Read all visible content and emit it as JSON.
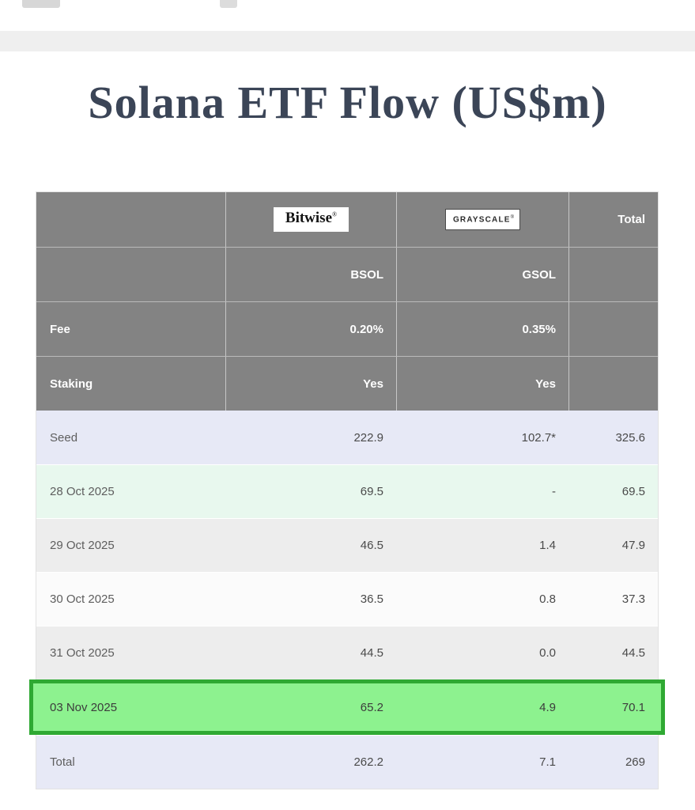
{
  "page": {
    "title": "Solana ETF Flow (US$m)"
  },
  "table": {
    "logos": {
      "bitwise": "Bitwise",
      "bitwise_mark": "®",
      "grayscale": "GRAYSCALE",
      "grayscale_mark": "®"
    },
    "header": {
      "total": "Total",
      "tickers": {
        "bsol": "BSOL",
        "gsol": "GSOL"
      },
      "fee": {
        "label": "Fee",
        "bsol": "0.20%",
        "gsol": "0.35%"
      },
      "staking": {
        "label": "Staking",
        "bsol": "Yes",
        "gsol": "Yes"
      }
    },
    "rows": [
      {
        "label": "Seed",
        "bsol": "222.9",
        "gsol": "102.7*",
        "total": "325.6"
      },
      {
        "label": "28 Oct 2025",
        "bsol": "69.5",
        "gsol": "-",
        "total": "69.5"
      },
      {
        "label": "29 Oct 2025",
        "bsol": "46.5",
        "gsol": "1.4",
        "total": "47.9"
      },
      {
        "label": "30 Oct 2025",
        "bsol": "36.5",
        "gsol": "0.8",
        "total": "37.3"
      },
      {
        "label": "31 Oct 2025",
        "bsol": "44.5",
        "gsol": "0.0",
        "total": "44.5"
      },
      {
        "label": "03 Nov 2025",
        "bsol": "65.2",
        "gsol": "4.9",
        "total": "70.1"
      },
      {
        "label": "Total",
        "bsol": "262.2",
        "gsol": "7.1",
        "total": "269"
      }
    ]
  },
  "colors": {
    "header_bg": "#838383",
    "row_lavender": "#e7e9f6",
    "row_mint": "#e8f8ee",
    "row_gray": "#ededed",
    "row_white": "#fbfbfb",
    "highlight_bg": "#8df28f",
    "highlight_border": "#2fa933",
    "title_color": "#3b4557"
  },
  "chart_data": {
    "type": "table",
    "title": "Solana ETF Flow (US$m)",
    "columns": [
      "",
      "Bitwise BSOL",
      "Grayscale GSOL",
      "Total"
    ],
    "meta_rows": [
      [
        "Fee",
        "0.20%",
        "0.35%",
        ""
      ],
      [
        "Staking",
        "Yes",
        "Yes",
        ""
      ]
    ],
    "rows": [
      [
        "Seed",
        222.9,
        "102.7*",
        325.6
      ],
      [
        "28 Oct 2025",
        69.5,
        "-",
        69.5
      ],
      [
        "29 Oct 2025",
        46.5,
        1.4,
        47.9
      ],
      [
        "30 Oct 2025",
        36.5,
        0.8,
        37.3
      ],
      [
        "31 Oct 2025",
        44.5,
        0.0,
        44.5
      ],
      [
        "03 Nov 2025",
        65.2,
        4.9,
        70.1
      ],
      [
        "Total",
        262.2,
        7.1,
        269
      ]
    ],
    "highlighted_row": "03 Nov 2025",
    "layout": {
      "header_rows_gray": true,
      "highlight_style": "green box around 03 Nov 2025 row"
    }
  }
}
